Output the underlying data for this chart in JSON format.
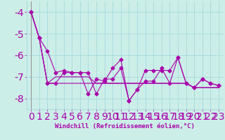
{
  "xlabel": "Windchill (Refroidissement éolien,°C)",
  "background_color": "#cceee8",
  "grid_color": "#aadddd",
  "line_color": "#aa00aa",
  "x_values": [
    0,
    1,
    2,
    3,
    4,
    5,
    6,
    7,
    8,
    9,
    10,
    11,
    12,
    13,
    14,
    15,
    16,
    17,
    18,
    19,
    20,
    21,
    22,
    23
  ],
  "series1": [
    -4.0,
    -5.2,
    -5.8,
    -6.8,
    -6.7,
    -6.8,
    -6.8,
    -7.8,
    -7.1,
    -7.2,
    -6.6,
    -6.2,
    -8.1,
    -7.6,
    -7.2,
    -7.2,
    -6.6,
    -7.3,
    -6.1,
    -7.3,
    -7.5,
    -7.1,
    -7.3,
    -7.4
  ],
  "series2": [
    -4.0,
    -5.2,
    -7.3,
    -7.0,
    -7.0,
    -7.0,
    -7.0,
    -7.0,
    -7.3,
    -7.3,
    -7.3,
    -7.3,
    -7.3,
    -7.3,
    -7.3,
    -7.3,
    -7.3,
    -7.3,
    -7.3,
    -7.3,
    -7.5,
    -7.5,
    -7.5,
    -7.5
  ],
  "series3": [
    -4.0,
    -5.2,
    -7.3,
    -7.3,
    -6.8,
    -6.8,
    -6.8,
    -6.8,
    -7.8,
    -7.1,
    -7.1,
    -6.6,
    -8.1,
    -7.6,
    -6.7,
    -6.7,
    -6.7,
    -6.7,
    -6.1,
    -7.3,
    -7.5,
    -7.1,
    -7.3,
    -7.4
  ],
  "series4": [
    -4.0,
    -5.2,
    -7.3,
    -7.3,
    -7.3,
    -7.3,
    -7.3,
    -7.3,
    -7.3,
    -7.3,
    -7.3,
    -7.3,
    -7.3,
    -7.3,
    -7.3,
    -7.3,
    -7.3,
    -7.3,
    -7.3,
    -7.3,
    -7.5,
    -7.5,
    -7.5,
    -7.5
  ],
  "ylim": [
    -8.5,
    -3.5
  ],
  "xlim": [
    -0.5,
    23.5
  ],
  "yticks": [
    -8,
    -7,
    -6,
    -5,
    -4
  ],
  "xticks": [
    0,
    1,
    2,
    3,
    4,
    5,
    6,
    7,
    8,
    9,
    10,
    11,
    12,
    13,
    14,
    15,
    16,
    17,
    18,
    19,
    20,
    21,
    22,
    23
  ],
  "font_color": "#aa00aa",
  "tick_labelsize": 5.5,
  "xlabel_fontsize": 6.5
}
